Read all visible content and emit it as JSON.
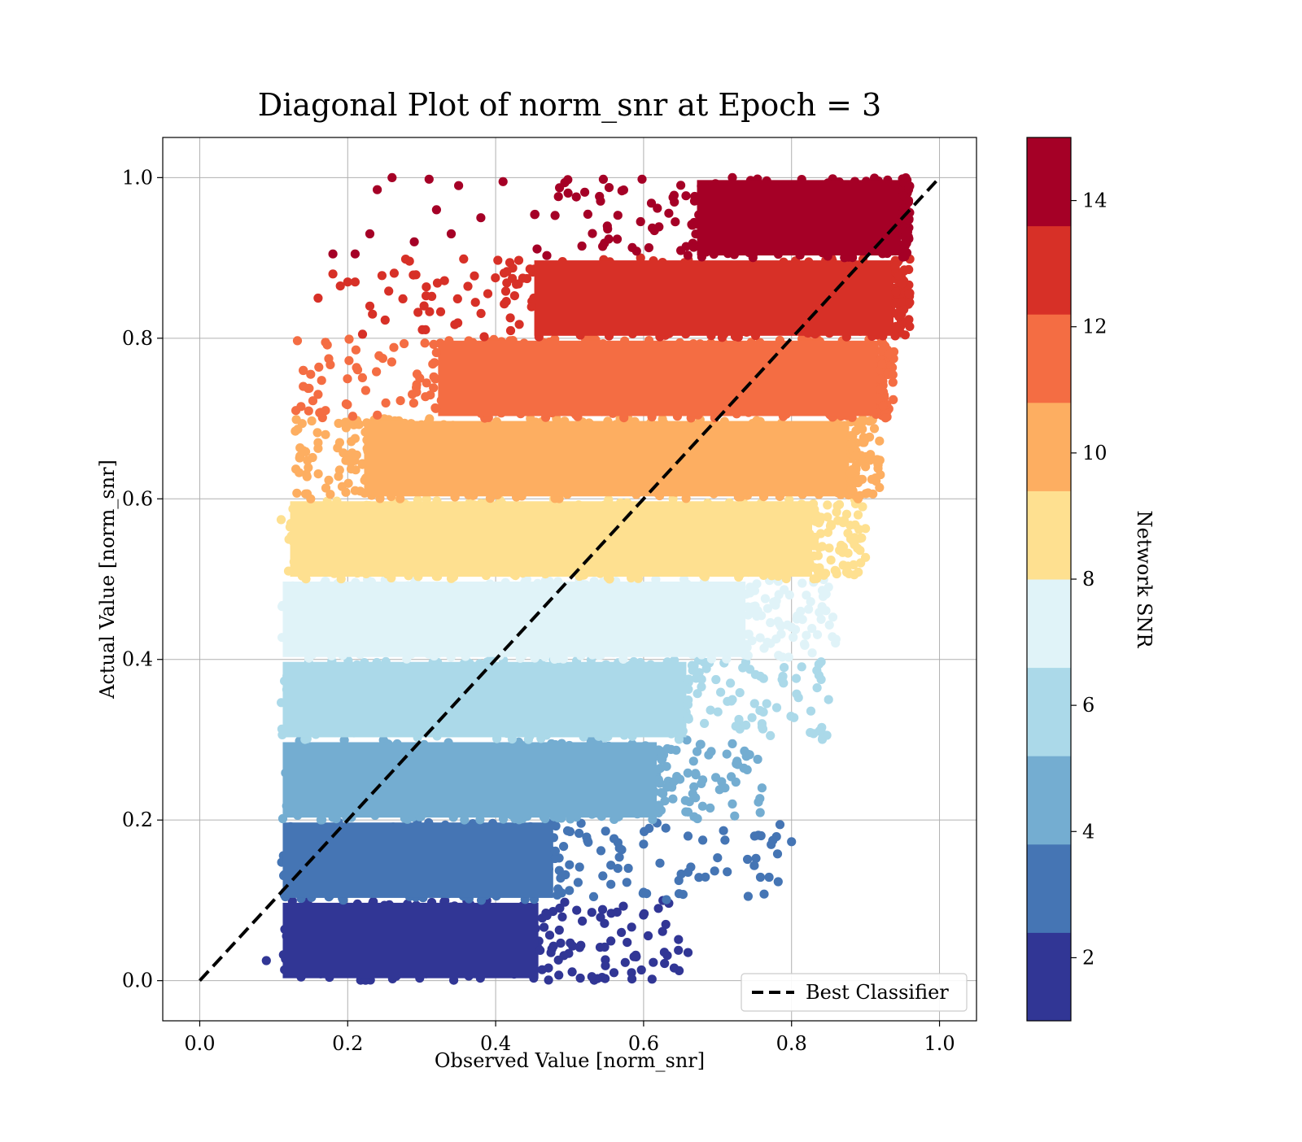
{
  "chart_data": {
    "type": "scatter",
    "title": "Diagonal Plot of norm_snr at Epoch = 3",
    "xlabel": "Observed Value [norm_snr]",
    "ylabel": "Actual Value [norm_snr]",
    "xlim": [
      -0.05,
      1.05
    ],
    "ylim": [
      -0.05,
      1.05
    ],
    "xticks": [
      "0.0",
      "0.2",
      "0.4",
      "0.6",
      "0.8",
      "1.0"
    ],
    "yticks": [
      "0.0",
      "0.2",
      "0.4",
      "0.6",
      "0.8",
      "1.0"
    ],
    "grid": true,
    "legend": {
      "position": "lower-right",
      "entries": [
        "Best Classifier"
      ]
    },
    "reference_line": {
      "name": "Best Classifier",
      "style": "dashed",
      "color": "#000000",
      "x": [
        0.0,
        1.0
      ],
      "y": [
        0.0,
        1.0
      ]
    },
    "colorbar": {
      "label": "Network SNR",
      "range": [
        1,
        15
      ],
      "ticks": [
        "2",
        "4",
        "6",
        "8",
        "10",
        "12",
        "14"
      ],
      "colors": [
        "#313695",
        "#4575b4",
        "#74add1",
        "#abd9e9",
        "#e0f3f8",
        "#fee090",
        "#fdae61",
        "#f46d43",
        "#d73027",
        "#a50026"
      ]
    },
    "bands": [
      {
        "y_range": [
          0.0,
          0.1
        ],
        "x_core": [
          0.11,
          0.46
        ],
        "x_tail": 0.66,
        "tail_points": [
          [
            0.09,
            0.025
          ],
          [
            0.53,
            0.085
          ],
          [
            0.57,
            0.06
          ],
          [
            0.62,
            0.09
          ],
          [
            0.63,
            0.07
          ],
          [
            0.66,
            0.035
          ],
          [
            0.59,
            0.03
          ],
          [
            0.56,
            0.01
          ],
          [
            0.53,
            0.005
          ]
        ]
      },
      {
        "y_range": [
          0.1,
          0.2
        ],
        "x_core": [
          0.11,
          0.48
        ],
        "x_tail": 0.8,
        "tail_points": [
          [
            0.6,
            0.17
          ],
          [
            0.63,
            0.19
          ],
          [
            0.66,
            0.18
          ],
          [
            0.66,
            0.135
          ],
          [
            0.68,
            0.175
          ],
          [
            0.71,
            0.175
          ],
          [
            0.75,
            0.18
          ],
          [
            0.8,
            0.173
          ],
          [
            0.7,
            0.153
          ],
          [
            0.6,
            0.11
          ]
        ]
      },
      {
        "y_range": [
          0.2,
          0.3
        ],
        "x_core": [
          0.11,
          0.62
        ],
        "x_tail": 0.76,
        "tail_points": [
          [
            0.68,
            0.25
          ],
          [
            0.71,
            0.24
          ],
          [
            0.72,
            0.22
          ],
          [
            0.76,
            0.24
          ],
          [
            0.66,
            0.21
          ],
          [
            0.69,
            0.215
          ],
          [
            0.72,
            0.295
          ]
        ]
      },
      {
        "y_range": [
          0.3,
          0.4
        ],
        "x_core": [
          0.11,
          0.66
        ],
        "x_tail": 0.85,
        "tail_points": [
          [
            0.72,
            0.35
          ],
          [
            0.75,
            0.345
          ],
          [
            0.76,
            0.32
          ],
          [
            0.78,
            0.34
          ],
          [
            0.79,
            0.39
          ],
          [
            0.84,
            0.375
          ],
          [
            0.85,
            0.35
          ],
          [
            0.84,
            0.397
          ]
        ]
      },
      {
        "y_range": [
          0.4,
          0.5
        ],
        "x_core": [
          0.11,
          0.74
        ],
        "x_tail": 0.86,
        "tail_points": [
          [
            0.8,
            0.44
          ],
          [
            0.82,
            0.43
          ],
          [
            0.84,
            0.45
          ],
          [
            0.86,
            0.425
          ],
          [
            0.85,
            0.49
          ],
          [
            0.82,
            0.48
          ]
        ]
      },
      {
        "y_range": [
          0.5,
          0.6
        ],
        "x_core": [
          0.12,
          0.83
        ],
        "x_tail": 0.9,
        "tail_points": [
          [
            0.86,
            0.51
          ],
          [
            0.87,
            0.54
          ],
          [
            0.88,
            0.55
          ],
          [
            0.9,
            0.527
          ],
          [
            0.89,
            0.58
          ],
          [
            0.9,
            0.563
          ],
          [
            0.11,
            0.574
          ],
          [
            0.12,
            0.51
          ]
        ]
      },
      {
        "y_range": [
          0.6,
          0.7
        ],
        "x_core": [
          0.22,
          0.88
        ],
        "x_tail": 0.92,
        "tail_points": [
          [
            0.89,
            0.62
          ],
          [
            0.9,
            0.64
          ],
          [
            0.91,
            0.606
          ],
          [
            0.92,
            0.63
          ],
          [
            0.89,
            0.6
          ],
          [
            0.13,
            0.637
          ],
          [
            0.14,
            0.66
          ],
          [
            0.16,
            0.67
          ],
          [
            0.17,
            0.68
          ],
          [
            0.15,
            0.6
          ]
        ]
      },
      {
        "y_range": [
          0.7,
          0.8
        ],
        "x_core": [
          0.32,
          0.92
        ],
        "x_tail": 0.94,
        "tail_points": [
          [
            0.14,
            0.76
          ],
          [
            0.15,
            0.755
          ],
          [
            0.17,
            0.795
          ],
          [
            0.14,
            0.74
          ],
          [
            0.16,
            0.73
          ],
          [
            0.17,
            0.71
          ],
          [
            0.13,
            0.71
          ]
        ]
      },
      {
        "y_range": [
          0.8,
          0.9
        ],
        "x_core": [
          0.45,
          0.94
        ],
        "x_tail": 0.96,
        "tail_points": [
          [
            0.16,
            0.85
          ],
          [
            0.18,
            0.88
          ],
          [
            0.2,
            0.87
          ],
          [
            0.19,
            0.865
          ],
          [
            0.21,
            0.87
          ],
          [
            0.23,
            0.84
          ],
          [
            0.22,
            0.805
          ]
        ]
      },
      {
        "y_range": [
          0.9,
          1.0
        ],
        "x_core": [
          0.67,
          0.95
        ],
        "x_tail": 0.96,
        "tail_points": [
          [
            0.18,
            0.905
          ],
          [
            0.21,
            0.905
          ],
          [
            0.23,
            0.93
          ],
          [
            0.24,
            0.985
          ],
          [
            0.26,
            1.0
          ],
          [
            0.29,
            0.92
          ],
          [
            0.31,
            0.998
          ],
          [
            0.32,
            0.96
          ],
          [
            0.34,
            0.93
          ],
          [
            0.35,
            0.99
          ],
          [
            0.38,
            0.95
          ],
          [
            0.41,
            0.995
          ]
        ]
      }
    ]
  }
}
